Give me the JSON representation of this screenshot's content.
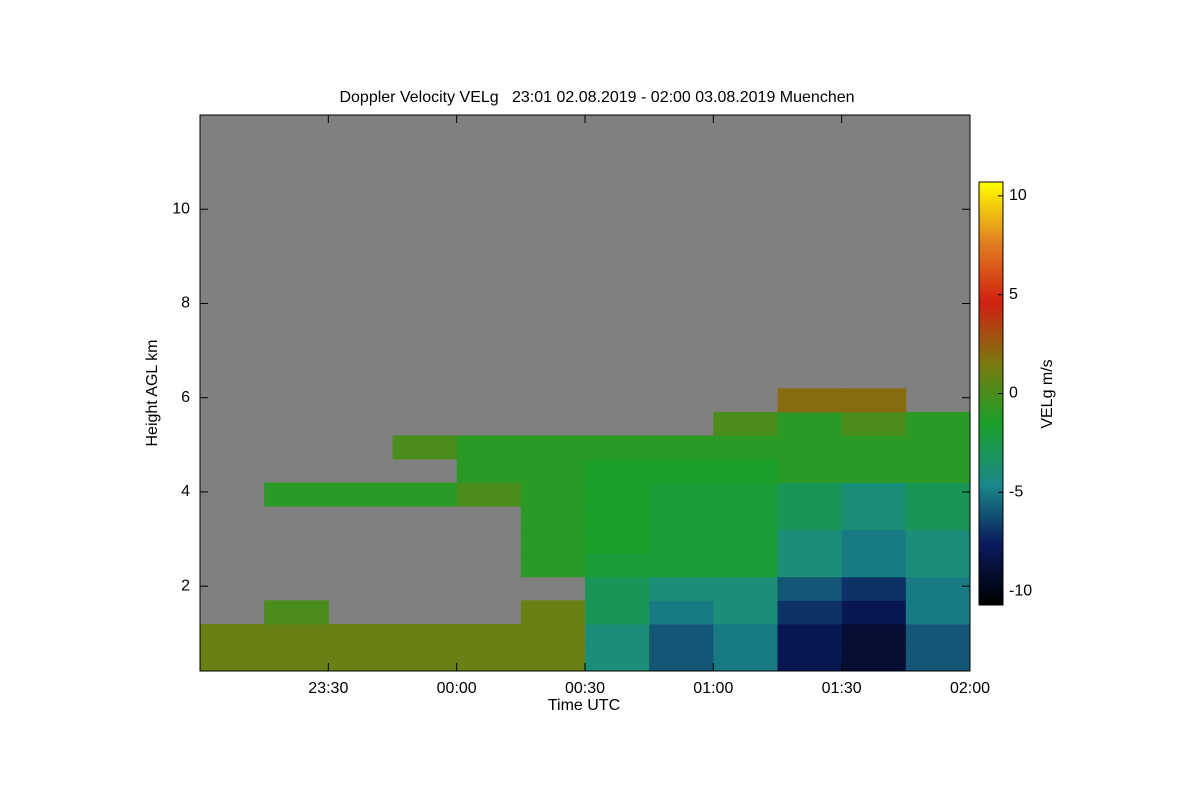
{
  "chart_data": {
    "type": "heatmap",
    "title": "Doppler Velocity VELg   23:01 02.08.2019 - 02:00 03.08.2019 Muenchen",
    "x_label": "Time UTC",
    "y_label": "Height AGL km",
    "colorbar_label": "VELg m/s",
    "xlim": [
      "2019-08-02T23:00",
      "2019-08-03T02:00"
    ],
    "xticks": [
      {
        "value": "2019-08-02T23:30",
        "label": "23:30"
      },
      {
        "value": "2019-08-03T00:00",
        "label": "00:00"
      },
      {
        "value": "2019-08-03T00:30",
        "label": "00:30"
      },
      {
        "value": "2019-08-03T01:00",
        "label": "01:00"
      },
      {
        "value": "2019-08-03T01:30",
        "label": "01:30"
      },
      {
        "value": "2019-08-03T02:00",
        "label": "02:00"
      }
    ],
    "ylim": [
      0.2,
      12.0
    ],
    "yticks": [
      2,
      4,
      6,
      8,
      10
    ],
    "x_bins": [
      "2019-08-02T23:00",
      "2019-08-02T23:15",
      "2019-08-02T23:30",
      "2019-08-02T23:45",
      "2019-08-03T00:00",
      "2019-08-03T00:15",
      "2019-08-03T00:30",
      "2019-08-03T00:45",
      "2019-08-03T01:00",
      "2019-08-03T01:15",
      "2019-08-03T01:30",
      "2019-08-03T01:45",
      "2019-08-03T02:00"
    ],
    "y_bins": [
      0.2,
      0.7,
      1.2,
      1.7,
      2.2,
      2.7,
      3.2,
      3.7,
      4.2,
      4.7,
      5.2,
      5.7,
      6.2
    ],
    "z": [
      [
        1,
        1,
        1,
        1,
        1,
        1,
        -4,
        -6,
        -5,
        -8,
        -9,
        -6
      ],
      [
        1,
        1,
        1,
        1,
        1,
        1,
        -4,
        -6,
        -5,
        -8,
        -9,
        -6
      ],
      [
        null,
        0,
        null,
        null,
        null,
        1,
        -3,
        -5,
        -4,
        -7,
        -8,
        -5
      ],
      [
        null,
        null,
        null,
        null,
        null,
        null,
        -3,
        -4,
        -4,
        -6,
        -7,
        -5
      ],
      [
        null,
        null,
        null,
        null,
        null,
        -1,
        -2,
        -2,
        -2,
        -4,
        -5,
        -4
      ],
      [
        null,
        null,
        null,
        null,
        null,
        -1,
        -1.5,
        -2,
        -2,
        -4,
        -5,
        -4
      ],
      [
        null,
        null,
        null,
        null,
        null,
        -1,
        -1.5,
        -2,
        -2,
        -3,
        -4,
        -3
      ],
      [
        null,
        -1,
        -1,
        -1,
        0,
        -1,
        -1.5,
        -2,
        -2,
        -3,
        -4,
        -3
      ],
      [
        null,
        null,
        null,
        null,
        -1,
        -1,
        -1.5,
        -1.5,
        -1.5,
        -1,
        -1,
        -1
      ],
      [
        null,
        null,
        null,
        0,
        -1,
        -1,
        -1,
        -1,
        -1,
        -1,
        -1,
        -1
      ],
      [
        null,
        null,
        null,
        null,
        null,
        null,
        null,
        null,
        0,
        -1,
        0,
        -1
      ],
      [
        null,
        null,
        null,
        null,
        null,
        null,
        null,
        null,
        null,
        2,
        2,
        null
      ]
    ],
    "clim": [
      -10.7,
      10.7
    ],
    "cticks": [
      -10,
      -5,
      0,
      5,
      10
    ],
    "colorscale": [
      "#000000",
      "#0a1a5c",
      "#1a8a8a",
      "#1aa02a",
      "#7a7a10",
      "#d02010",
      "#e08020",
      "#ffff00"
    ],
    "nan_color": "#808080"
  }
}
